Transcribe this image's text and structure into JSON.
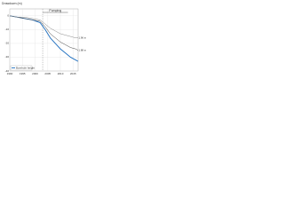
{
  "chart_data": {
    "type": "line",
    "title": "Drawdown (m)",
    "x": [
      1990,
      1993,
      1996,
      1999,
      2002,
      2004,
      2006,
      2008,
      2010,
      2012,
      2014,
      2016,
      2017
    ],
    "xlim": [
      1990,
      2017
    ],
    "xticks": [
      1990,
      1995,
      2000,
      2005,
      2010,
      2015
    ],
    "ylim": [
      -40,
      5
    ],
    "yticks": [
      -40,
      -30,
      -20,
      -10,
      0
    ],
    "grid": true,
    "series": [
      {
        "name": "Borehole height",
        "color": "#1f6fc0",
        "values": [
          0,
          -1,
          -2,
          -3,
          -5,
          -10,
          -16,
          -20,
          -24,
          -27,
          -30,
          -32,
          -33
        ]
      },
      {
        "name": "1.88 m",
        "color": "#444444",
        "values": [
          0,
          -1,
          -2,
          -3,
          -4,
          -8,
          -13,
          -16,
          -19,
          -21,
          -23,
          -24,
          -25
        ]
      },
      {
        "name": "1.96 m",
        "color": "#888888",
        "values": [
          0,
          -1,
          -1,
          -2,
          -3,
          -6,
          -9,
          -11,
          -13,
          -14,
          -15,
          -16,
          -16
        ]
      }
    ],
    "annotations": [
      {
        "text": "Pumping",
        "x": [
          2003,
          2013
        ]
      }
    ]
  }
}
